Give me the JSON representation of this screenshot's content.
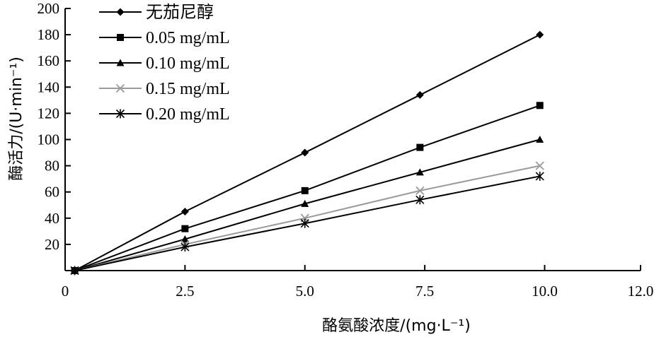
{
  "chart_data": {
    "type": "line",
    "title": "",
    "xlabel": "酪氨酸浓度/(mg·L⁻¹)",
    "ylabel": "酶活力/(U·min⁻¹)",
    "xlim": [
      0,
      12
    ],
    "ylim": [
      0,
      200
    ],
    "x_ticks": [
      "0",
      "2.5",
      "5.0",
      "7.5",
      "10.0",
      "12.0"
    ],
    "y_ticks": [
      "20",
      "40",
      "60",
      "80",
      "100",
      "120",
      "140",
      "160",
      "180",
      "200"
    ],
    "x": [
      0.2,
      2.5,
      5.0,
      7.4,
      9.9
    ],
    "series": [
      {
        "name": "无茄尼醇",
        "marker": "diamond",
        "color": "#000000",
        "values": [
          0,
          45,
          90,
          134,
          180
        ]
      },
      {
        "name": "0.05 mg/mL",
        "marker": "square",
        "color": "#000000",
        "values": [
          0,
          32,
          61,
          94,
          126
        ]
      },
      {
        "name": "0.10 mg/mL",
        "marker": "triangle",
        "color": "#000000",
        "values": [
          0,
          24,
          51,
          75,
          100
        ]
      },
      {
        "name": "0.15 mg/mL",
        "marker": "x",
        "color": "#9a9a9a",
        "values": [
          0,
          20,
          40,
          61,
          80
        ]
      },
      {
        "name": "0.20 mg/mL",
        "marker": "star",
        "color": "#000000",
        "values": [
          0,
          18,
          36,
          54,
          72
        ]
      }
    ],
    "grid": false,
    "legend_position": "top-left"
  }
}
